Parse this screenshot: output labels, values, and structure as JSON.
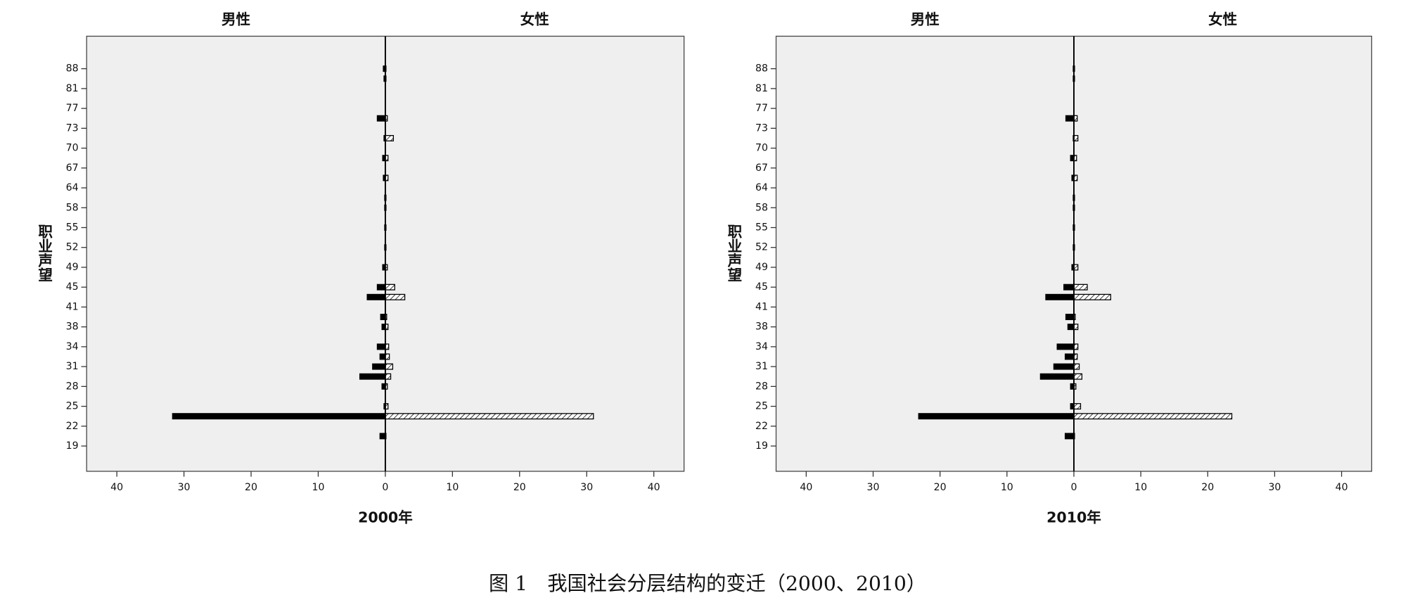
{
  "chart_data": [
    {
      "type": "pyramid",
      "xlabel": "2000年",
      "ylabel": "职业声望",
      "categories": [
        "88",
        null,
        "81",
        null,
        "77",
        null,
        "73",
        null,
        "70",
        null,
        "67",
        null,
        "64",
        null,
        "58",
        null,
        "55",
        null,
        "52",
        null,
        "49",
        null,
        "45",
        null,
        "41",
        null,
        "38",
        null,
        "34",
        null,
        "31",
        null,
        "28",
        null,
        "25",
        null,
        "22",
        null,
        "19"
      ],
      "series": [
        {
          "name": "男性",
          "color": "#000000",
          "side": "left",
          "values": [
            0.3,
            0.2,
            0,
            0,
            0,
            1.2,
            0,
            0.2,
            0,
            0.4,
            0,
            0.3,
            0,
            0.1,
            0.1,
            0,
            0.1,
            0,
            0.1,
            0,
            0.4,
            0,
            1.2,
            2.7,
            0,
            0.7,
            0.5,
            0,
            1.2,
            0.8,
            1.9,
            3.8,
            0.5,
            0,
            0.2,
            31.7,
            0,
            0.8,
            0
          ]
        },
        {
          "name": "女性",
          "color": "#ffffff",
          "pattern": "hatched",
          "side": "right",
          "values": [
            0.1,
            0.1,
            0,
            0,
            0,
            0.3,
            0,
            1.2,
            0,
            0.4,
            0,
            0.4,
            0,
            0.1,
            0.1,
            0,
            0.1,
            0,
            0.1,
            0,
            0.3,
            0,
            1.4,
            2.9,
            0,
            0.2,
            0.4,
            0,
            0.5,
            0.6,
            1.1,
            0.8,
            0.3,
            0,
            0.4,
            31,
            0,
            0.1,
            0
          ]
        }
      ],
      "xlim": [
        -44.5,
        44.5
      ],
      "xticks": [
        {
          "value": -40,
          "label": "40"
        },
        {
          "value": -30,
          "label": "30"
        },
        {
          "value": -20,
          "label": "20"
        },
        {
          "value": -10,
          "label": "10"
        },
        0,
        10,
        20,
        30,
        40
      ]
    },
    {
      "type": "pyramid",
      "xlabel": "2010年",
      "ylabel": "职业声望",
      "categories": [
        "88",
        null,
        "81",
        null,
        "77",
        null,
        "73",
        null,
        "70",
        null,
        "67",
        null,
        "64",
        null,
        "58",
        null,
        "55",
        null,
        "52",
        null,
        "49",
        null,
        "45",
        null,
        "41",
        null,
        "38",
        null,
        "34",
        null,
        "31",
        null,
        "28",
        null,
        "25",
        null,
        "22",
        null,
        "19"
      ],
      "series": [
        {
          "name": "男性",
          "color": "#000000",
          "side": "left",
          "values": [
            0.1,
            0.1,
            0,
            0,
            0,
            1.2,
            0,
            0.1,
            0,
            0.5,
            0,
            0.3,
            0,
            0.1,
            0.1,
            0,
            0.1,
            0,
            0.1,
            0,
            0.3,
            0,
            1.5,
            4.2,
            0,
            1.2,
            0.9,
            0,
            2.5,
            1.3,
            3,
            5,
            0.5,
            0,
            0.5,
            23.2,
            0,
            1.3,
            0
          ]
        },
        {
          "name": "女性",
          "color": "#ffffff",
          "pattern": "hatched",
          "side": "right",
          "values": [
            0.1,
            0.1,
            0,
            0,
            0,
            0.5,
            0,
            0.6,
            0,
            0.4,
            0,
            0.5,
            0,
            0.1,
            0.1,
            0,
            0.1,
            0,
            0.1,
            0,
            0.6,
            0,
            2,
            5.5,
            0,
            0.2,
            0.6,
            0,
            0.6,
            0.5,
            0.8,
            1.2,
            0.3,
            0,
            1,
            23.6,
            0,
            0.1,
            0
          ]
        }
      ],
      "xlim": [
        -44.5,
        44.5
      ],
      "xticks": [
        {
          "value": -40,
          "label": "40"
        },
        {
          "value": -30,
          "label": "30"
        },
        {
          "value": -20,
          "label": "20"
        },
        {
          "value": -10,
          "label": "10"
        },
        0,
        10,
        20,
        30,
        40
      ]
    }
  ],
  "caption": "图 1　我国社会分层结构的变迁（2000、2010）"
}
